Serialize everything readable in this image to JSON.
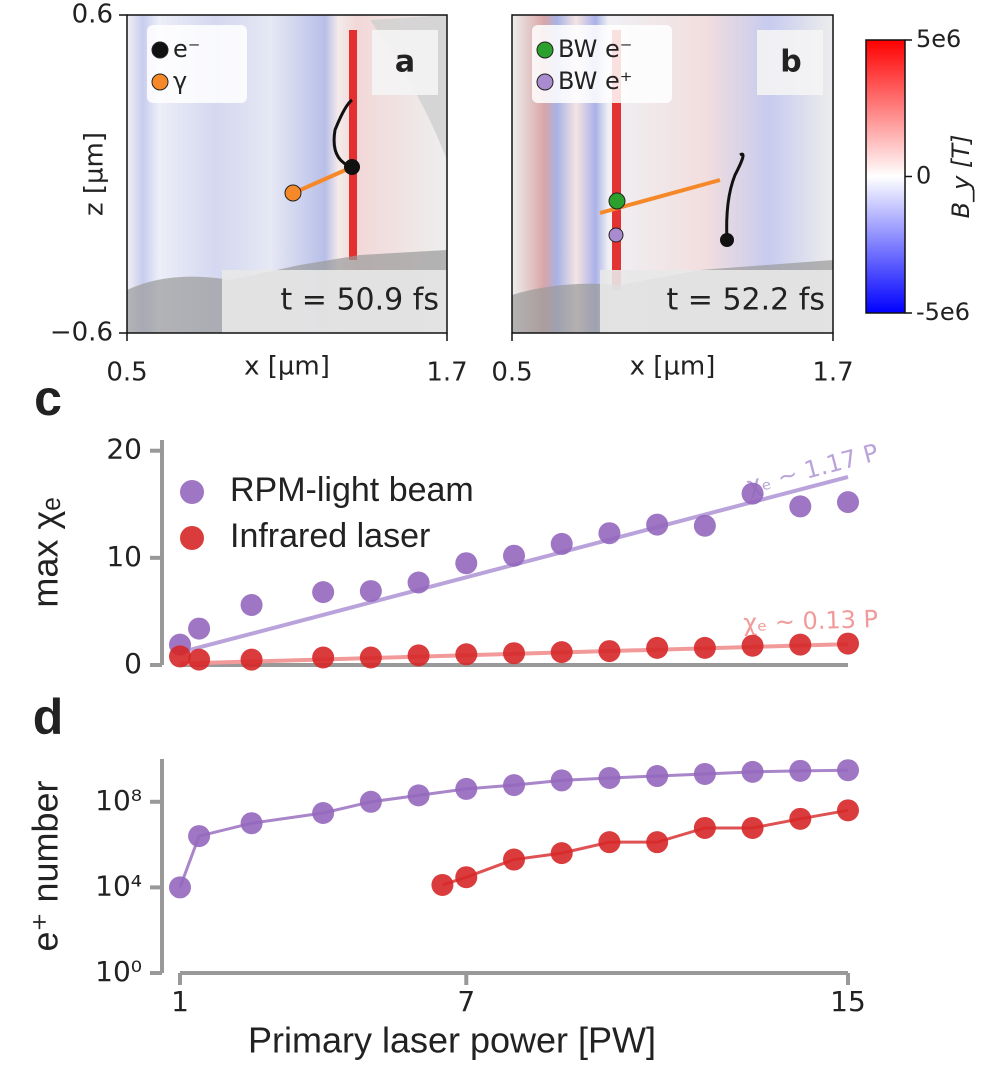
{
  "chart_data": [
    {
      "type": "image",
      "label": "a",
      "xlabel": "x [µm]",
      "ylabel": "z [µm]",
      "xlim": [
        0.5,
        1.7
      ],
      "ylim": [
        -0.6,
        0.6
      ],
      "xticks": [
        0.5,
        1.7
      ],
      "yticks": [
        {
          "value": -0.6,
          "label": "−0.6"
        },
        0.6
      ],
      "legend": [
        {
          "name": "e⁻",
          "color": "#111111"
        },
        {
          "name": "γ",
          "color": "#f5892a"
        }
      ],
      "annotation": "t = 50.9 fs"
    },
    {
      "type": "image",
      "label": "b",
      "xlabel": "x [µm]",
      "xlim": [
        0.5,
        1.7
      ],
      "ylim": [
        -0.6,
        0.6
      ],
      "xticks": [
        0.5,
        1.7
      ],
      "legend": [
        {
          "name": "BW e⁻",
          "color": "#2ca02c"
        },
        {
          "name": "BW e⁺",
          "color": "#a98bd0"
        }
      ],
      "annotation": "t = 52.2 fs"
    },
    {
      "type": "colorbar",
      "label": "B_y [T]",
      "lim": [
        -5000000,
        5000000
      ],
      "ticks": [
        {
          "value": -5000000,
          "label": "-5e6"
        },
        0,
        {
          "value": 5000000,
          "label": "5e6"
        }
      ],
      "colors": [
        "#0000ff",
        "#ffffff",
        "#ff0000"
      ]
    },
    {
      "type": "scatter",
      "label": "c",
      "ylabel": "max χₑ",
      "xlim": [
        1,
        15
      ],
      "ylim": [
        0,
        21
      ],
      "yticks": [
        0,
        10,
        20
      ],
      "series": [
        {
          "name": "RPM-light beam",
          "color": "#9467bd",
          "x": [
            1,
            1.4,
            2.5,
            4,
            5,
            6,
            7,
            8,
            9,
            10,
            11,
            12,
            13,
            14,
            15
          ],
          "values": [
            1.9,
            3.4,
            5.6,
            6.8,
            6.9,
            7.7,
            9.5,
            10.2,
            11.3,
            12.3,
            13.1,
            13.0,
            16.0,
            14.8,
            15.2
          ]
        },
        {
          "name": "Infrared laser",
          "color": "#d62728",
          "x": [
            1,
            1.4,
            2.5,
            4,
            5,
            6,
            7,
            8,
            9,
            10,
            11,
            12,
            13,
            14,
            15
          ],
          "values": [
            0.8,
            0.5,
            0.5,
            0.7,
            0.7,
            0.9,
            1.0,
            1.1,
            1.2,
            1.3,
            1.6,
            1.6,
            1.8,
            1.9,
            2.0
          ]
        }
      ],
      "fits": [
        {
          "label": "χₑ ~ 1.17 P",
          "slope": 1.17,
          "color": "#b9a3da"
        },
        {
          "label": "χₑ ~ 0.13 P",
          "slope": 0.13,
          "color": "#f29a9a"
        }
      ]
    },
    {
      "type": "line",
      "label": "d",
      "ylabel": "e⁺ number",
      "xlabel": "Primary laser power [PW]",
      "xlim": [
        1,
        15
      ],
      "ylim": [
        1,
        10000000000
      ],
      "log_y": true,
      "xticks": [
        1,
        7,
        15
      ],
      "yticks": [
        {
          "value": 1,
          "label": "10⁰"
        },
        {
          "value": 10000,
          "label": "10⁴"
        },
        {
          "value": 100000000,
          "label": "10⁸"
        }
      ],
      "series": [
        {
          "name": "RPM-light beam",
          "color": "#9467bd",
          "x": [
            1,
            1.4,
            2.5,
            4,
            5,
            6,
            7,
            8,
            9,
            10,
            11,
            12,
            13,
            14,
            15
          ],
          "values": [
            10000,
            2500000,
            10000000,
            30000000,
            100000000,
            200000000,
            400000000,
            600000000,
            1000000000,
            1300000000,
            1600000000,
            2000000000,
            2500000000,
            2800000000,
            3000000000
          ]
        },
        {
          "name": "Infrared laser",
          "color": "#d62728",
          "x": [
            6.5,
            7,
            8,
            9,
            10,
            11,
            12,
            13,
            14,
            15
          ],
          "values": [
            13000,
            30000,
            200000,
            400000,
            1300000,
            1300000,
            6000000,
            6000000,
            16000000,
            40000000
          ]
        }
      ]
    }
  ]
}
